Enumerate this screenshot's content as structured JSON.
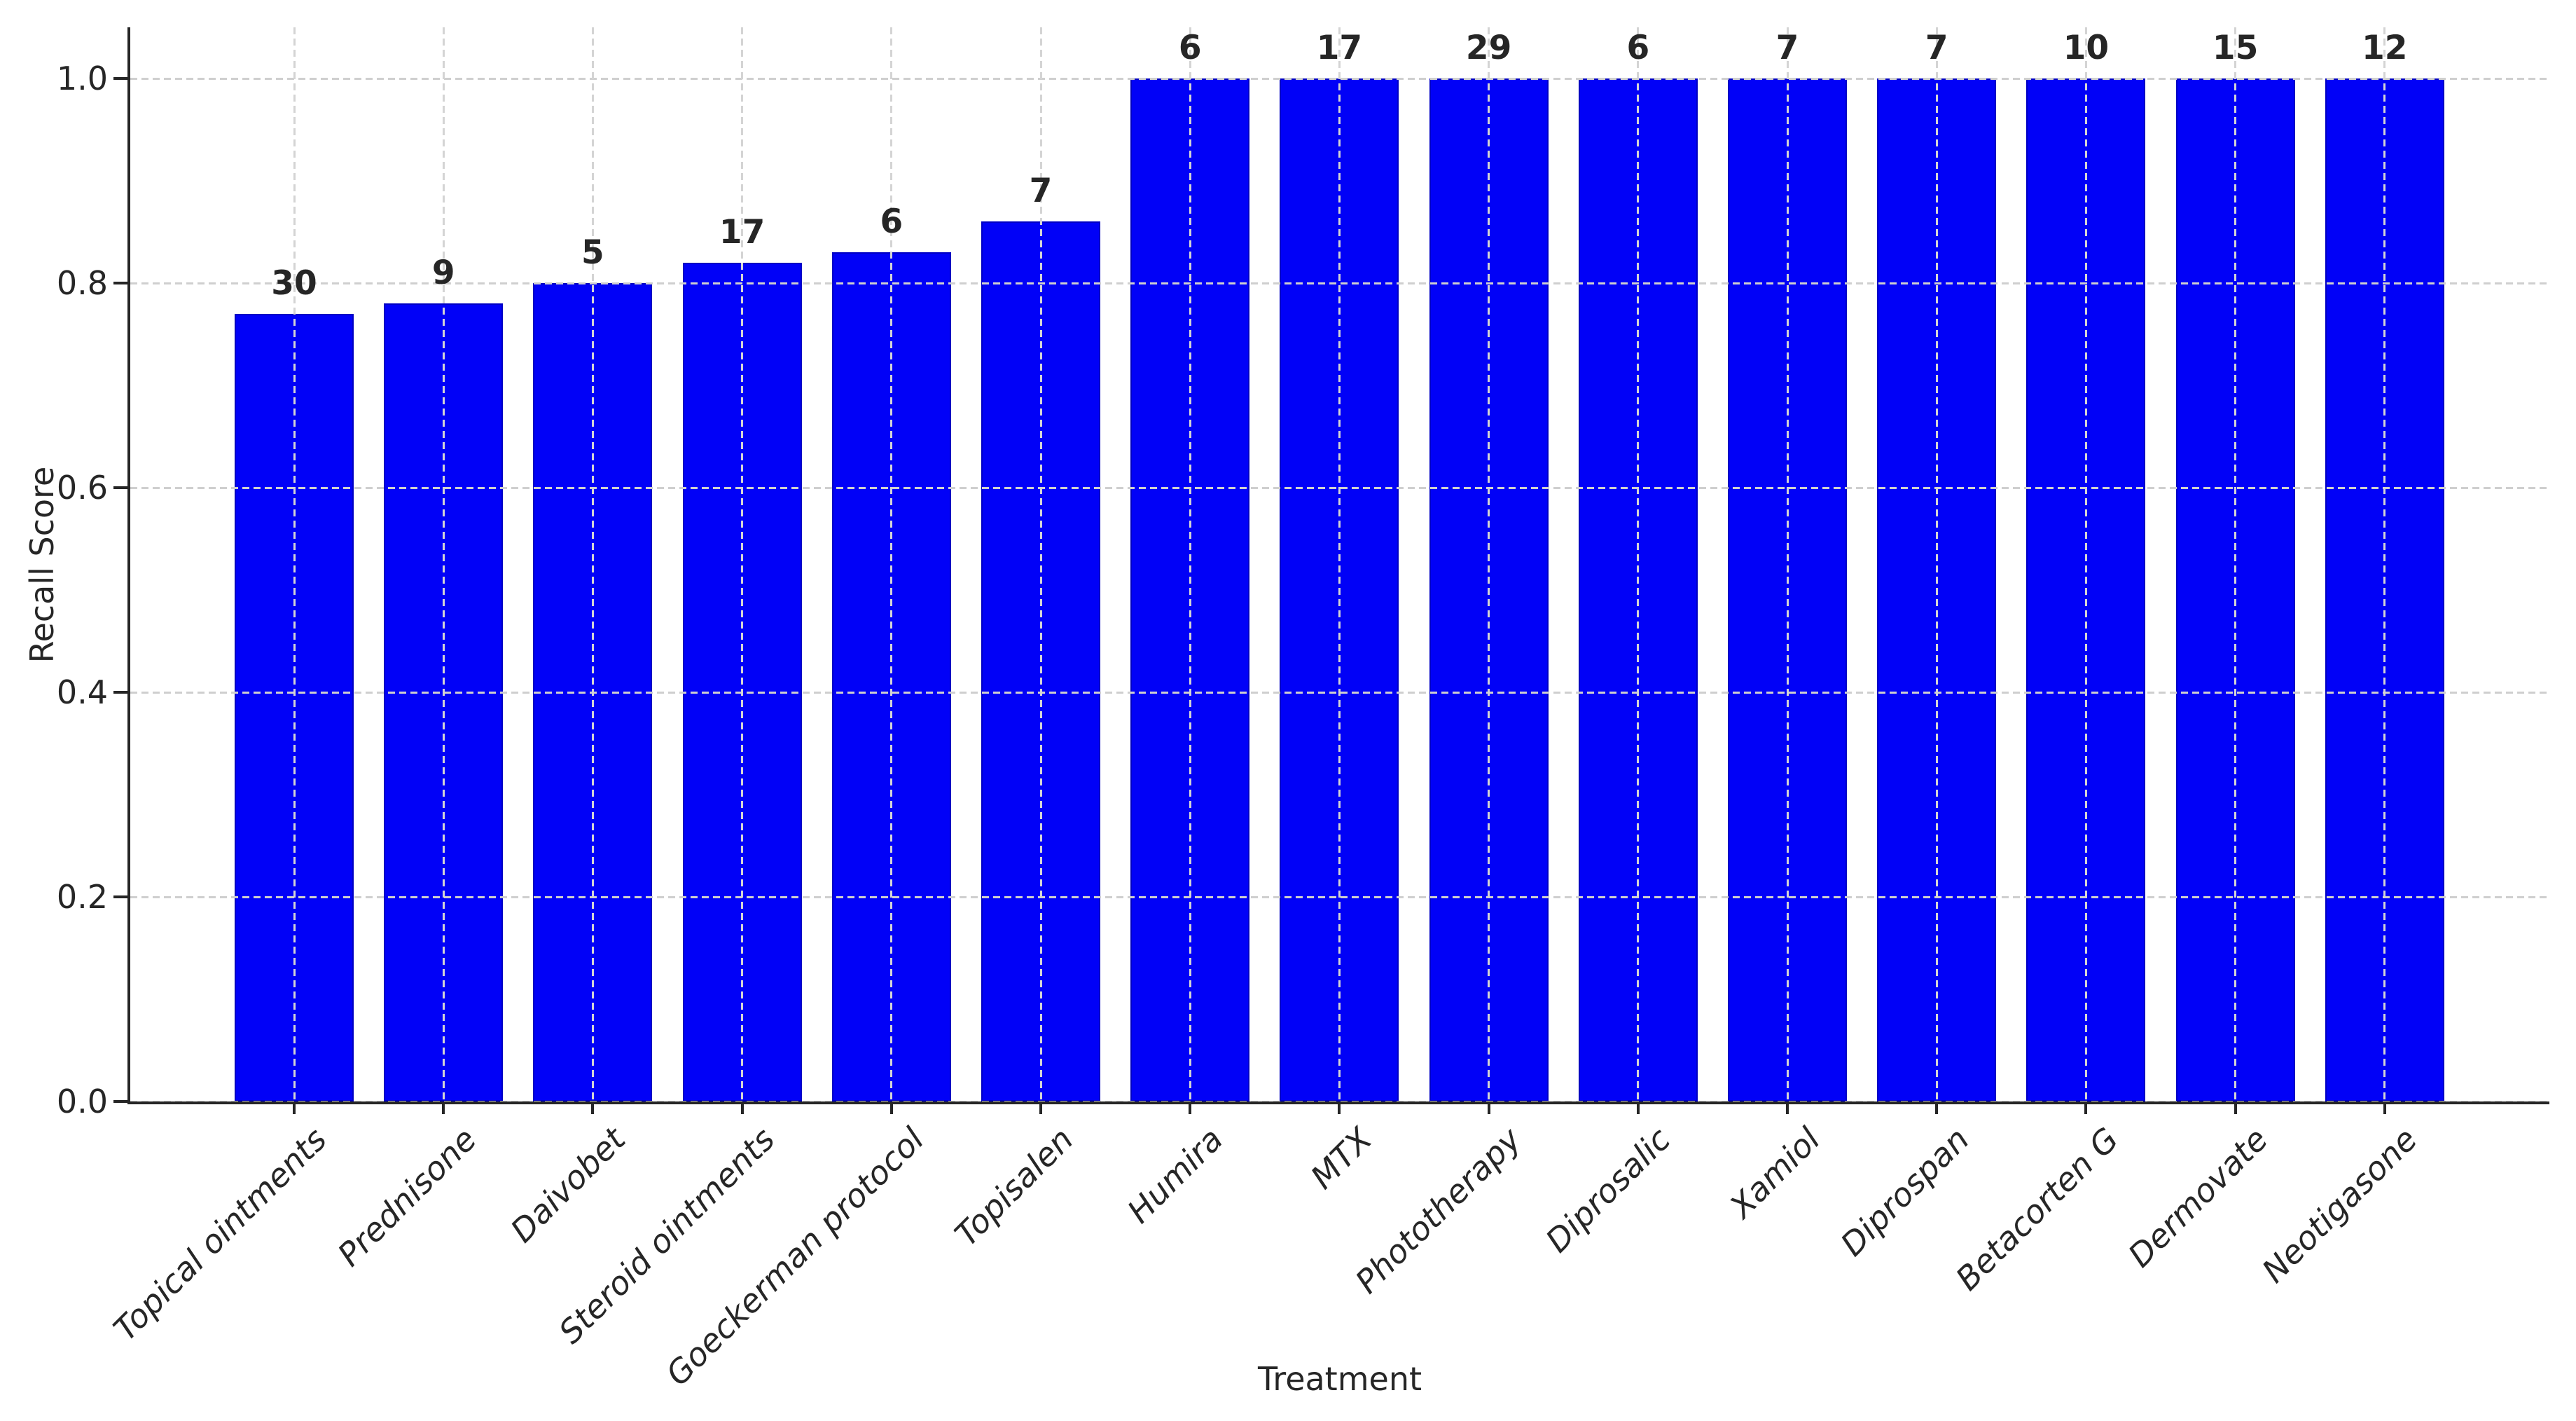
{
  "chart_data": {
    "type": "bar",
    "title": "",
    "xlabel": "Treatment",
    "ylabel": "Recall Score",
    "categories": [
      "Topical ointments",
      "Prednisone",
      "Daivobet",
      "Steroid ointments",
      "Goeckerman protocol",
      "Topisalen",
      "Humira",
      "MTX",
      "Phototherapy",
      "Diprosalic",
      "Xamiol",
      "Diprospan",
      "Betacorten G",
      "Dermovate",
      "Neotigasone"
    ],
    "values": [
      0.77,
      0.78,
      0.8,
      0.82,
      0.83,
      0.86,
      1.0,
      1.0,
      1.0,
      1.0,
      1.0,
      1.0,
      1.0,
      1.0,
      1.0
    ],
    "bar_labels": [
      "30",
      "9",
      "5",
      "17",
      "6",
      "7",
      "6",
      "17",
      "29",
      "6",
      "7",
      "7",
      "10",
      "15",
      "12"
    ],
    "yticks": [
      0.0,
      0.2,
      0.4,
      0.6,
      0.8,
      1.0
    ],
    "ytick_labels": [
      "0.0",
      "0.2",
      "0.4",
      "0.6",
      "0.8",
      "1.0"
    ],
    "ylim": [
      0,
      1.05
    ],
    "grid": "dashed, horizontal and vertical, drawn over bars",
    "legend": "none",
    "bar_color": "#0101f7",
    "bar_edge_color": "#0000c4",
    "grid_color": "#cfcfcf",
    "text_color": "#262626"
  }
}
